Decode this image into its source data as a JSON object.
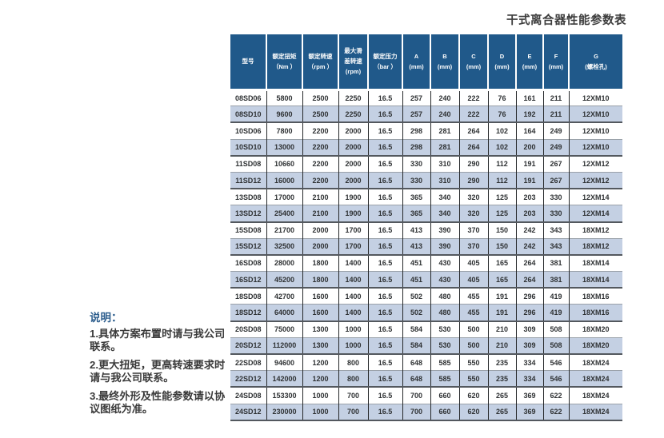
{
  "page": {
    "title": "干式离合器性能参数表"
  },
  "notes": {
    "heading": "说明：",
    "items": [
      "1.具体方案布置时请与我公司联系。",
      "2.更大扭矩，更高转速要求时请与我公司联系。",
      "3.最终外形及性能参数请以协议图纸为准。"
    ]
  },
  "table": {
    "columns": [
      {
        "lines": [
          "型号"
        ]
      },
      {
        "lines": [
          "额定扭矩",
          "（Nm ）"
        ]
      },
      {
        "lines": [
          "额定转速",
          "（rpm ）"
        ]
      },
      {
        "lines": [
          "最大滑",
          "差转速",
          "(rpm)"
        ]
      },
      {
        "lines": [
          "额定压力",
          "（bar ）"
        ]
      },
      {
        "lines": [
          "A",
          "(mm)"
        ]
      },
      {
        "lines": [
          "B",
          "(mm)"
        ]
      },
      {
        "lines": [
          "C",
          "(mm)"
        ]
      },
      {
        "lines": [
          "D",
          "(mm)"
        ]
      },
      {
        "lines": [
          "E",
          "(mm)"
        ]
      },
      {
        "lines": [
          "F",
          "(mm)"
        ]
      },
      {
        "lines": [
          "G",
          "(螺栓孔)"
        ]
      }
    ],
    "rows": [
      [
        "08SD06",
        "5800",
        "2500",
        "2250",
        "16.5",
        "257",
        "240",
        "222",
        "76",
        "161",
        "211",
        "12XM10"
      ],
      [
        "08SD10",
        "9600",
        "2500",
        "2250",
        "16.5",
        "257",
        "240",
        "222",
        "76",
        "192",
        "211",
        "12XM10"
      ],
      [
        "10SD06",
        "7800",
        "2200",
        "2000",
        "16.5",
        "298",
        "281",
        "264",
        "102",
        "164",
        "249",
        "12XM10"
      ],
      [
        "10SD10",
        "13000",
        "2200",
        "2000",
        "16.5",
        "298",
        "281",
        "264",
        "102",
        "200",
        "249",
        "12XM10"
      ],
      [
        "11SD08",
        "10660",
        "2200",
        "2000",
        "16.5",
        "330",
        "310",
        "290",
        "112",
        "191",
        "267",
        "12XM12"
      ],
      [
        "11SD12",
        "16000",
        "2200",
        "2000",
        "16.5",
        "330",
        "310",
        "290",
        "112",
        "191",
        "267",
        "12XM12"
      ],
      [
        "13SD08",
        "17000",
        "2100",
        "1900",
        "16.5",
        "365",
        "340",
        "320",
        "125",
        "203",
        "330",
        "12XM14"
      ],
      [
        "13SD12",
        "25400",
        "2100",
        "1900",
        "16.5",
        "365",
        "340",
        "320",
        "125",
        "203",
        "330",
        "12XM14"
      ],
      [
        "15SD08",
        "21700",
        "2000",
        "1700",
        "16.5",
        "413",
        "390",
        "370",
        "150",
        "242",
        "343",
        "18XM12"
      ],
      [
        "15SD12",
        "32500",
        "2000",
        "1700",
        "16.5",
        "413",
        "390",
        "370",
        "150",
        "242",
        "343",
        "18XM12"
      ],
      [
        "16SD08",
        "28000",
        "1800",
        "1400",
        "16.5",
        "451",
        "430",
        "405",
        "165",
        "264",
        "381",
        "18XM14"
      ],
      [
        "16SD12",
        "45200",
        "1800",
        "1400",
        "16.5",
        "451",
        "430",
        "405",
        "165",
        "264",
        "381",
        "18XM14"
      ],
      [
        "18SD08",
        "42700",
        "1600",
        "1400",
        "16.5",
        "502",
        "480",
        "455",
        "191",
        "296",
        "419",
        "18XM16"
      ],
      [
        "18SD12",
        "64000",
        "1600",
        "1400",
        "16.5",
        "502",
        "480",
        "455",
        "191",
        "296",
        "419",
        "18XM16"
      ],
      [
        "20SD08",
        "75000",
        "1300",
        "1000",
        "16.5",
        "584",
        "530",
        "500",
        "210",
        "309",
        "508",
        "18XM20"
      ],
      [
        "20SD12",
        "112000",
        "1300",
        "1000",
        "16.5",
        "584",
        "530",
        "500",
        "210",
        "309",
        "508",
        "18XM20"
      ],
      [
        "22SD08",
        "94600",
        "1200",
        "800",
        "16.5",
        "648",
        "585",
        "550",
        "235",
        "334",
        "546",
        "18XM24"
      ],
      [
        "22SD12",
        "142000",
        "1200",
        "800",
        "16.5",
        "648",
        "585",
        "550",
        "235",
        "334",
        "546",
        "18XM24"
      ],
      [
        "24SD08",
        "153300",
        "1000",
        "700",
        "16.5",
        "700",
        "660",
        "620",
        "265",
        "369",
        "622",
        "18XM24"
      ],
      [
        "24SD12",
        "230000",
        "1000",
        "700",
        "16.5",
        "700",
        "660",
        "620",
        "265",
        "369",
        "622",
        "18XM24"
      ]
    ]
  },
  "colors": {
    "header_bg": "#20598A",
    "row_alt_bg": "#C4D0E3",
    "column_line": "#26282A",
    "row_line": "#9AA1A9",
    "pair_line": "#53585E",
    "heading_blue": "#2E5F8E",
    "title_text": "#3D3D3D"
  }
}
